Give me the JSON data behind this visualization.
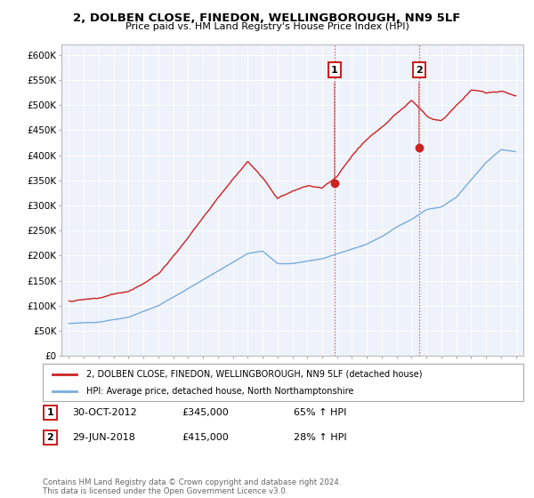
{
  "title1": "2, DOLBEN CLOSE, FINEDON, WELLINGBOROUGH, NN9 5LF",
  "title2": "Price paid vs. HM Land Registry's House Price Index (HPI)",
  "ylabel_ticks": [
    "£0",
    "£50K",
    "£100K",
    "£150K",
    "£200K",
    "£250K",
    "£300K",
    "£350K",
    "£400K",
    "£450K",
    "£500K",
    "£550K",
    "£600K"
  ],
  "ytick_values": [
    0,
    50000,
    100000,
    150000,
    200000,
    250000,
    300000,
    350000,
    400000,
    450000,
    500000,
    550000,
    600000
  ],
  "ylim": [
    0,
    620000
  ],
  "xlim_start": 1994.5,
  "xlim_end": 2025.5,
  "hpi_color": "#7aacdc",
  "price_color": "#cc2222",
  "sale1_date": 2012.83,
  "sale1_price": 345000,
  "sale2_date": 2018.5,
  "sale2_price": 415000,
  "legend_property": "2, DOLBEN CLOSE, FINEDON, WELLINGBOROUGH, NN9 5LF (detached house)",
  "legend_hpi": "HPI: Average price, detached house, North Northamptonshire",
  "annotation1_label": "1",
  "annotation1_date_str": "30-OCT-2012",
  "annotation1_price_str": "£345,000",
  "annotation1_hpi_str": "65% ↑ HPI",
  "annotation2_label": "2",
  "annotation2_date_str": "29-JUN-2018",
  "annotation2_price_str": "£415,000",
  "annotation2_hpi_str": "28% ↑ HPI",
  "footer": "Contains HM Land Registry data © Crown copyright and database right 2024.\nThis data is licensed under the Open Government Licence v3.0.",
  "background_color": "#ffffff",
  "plot_bg_color": "#eef2fa"
}
